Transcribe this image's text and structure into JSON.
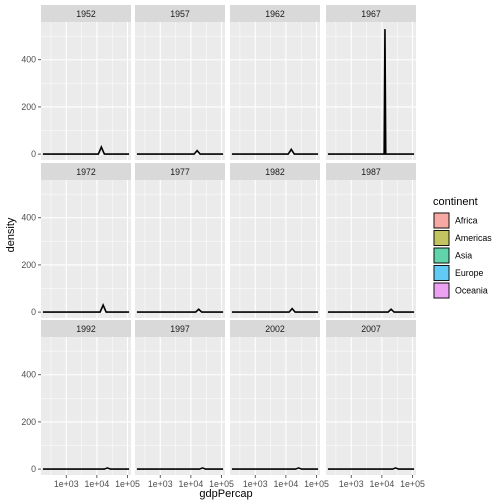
{
  "chart_data": {
    "type": "area",
    "xlabel": "gdpPercap",
    "ylabel": "density",
    "x_scale": "log10",
    "xlim": [
      150,
      130000
    ],
    "ylim": [
      -25,
      560
    ],
    "x_ticks": [
      {
        "value": 1000,
        "label": "1e+03"
      },
      {
        "value": 10000,
        "label": "1e+04"
      },
      {
        "value": 100000,
        "label": "1e+05"
      }
    ],
    "y_ticks": [
      {
        "value": 0,
        "label": "0"
      },
      {
        "value": 200,
        "label": "200"
      },
      {
        "value": 400,
        "label": "400"
      }
    ],
    "grid": true,
    "facets": [
      {
        "label": "1952",
        "peak_x": 14000,
        "peak_y": 30
      },
      {
        "label": "1957",
        "peak_x": 16000,
        "peak_y": 15
      },
      {
        "label": "1962",
        "peak_x": 15000,
        "peak_y": 20
      },
      {
        "label": "1967",
        "peak_x": 12600,
        "peak_y": 530
      },
      {
        "label": "1972",
        "peak_x": 16000,
        "peak_y": 30
      },
      {
        "label": "1977",
        "peak_x": 18000,
        "peak_y": 12
      },
      {
        "label": "1982",
        "peak_x": 16000,
        "peak_y": 15
      },
      {
        "label": "1987",
        "peak_x": 20000,
        "peak_y": 12
      },
      {
        "label": "1992",
        "peak_x": 22000,
        "peak_y": 5
      },
      {
        "label": "1997",
        "peak_x": 24000,
        "peak_y": 5
      },
      {
        "label": "2002",
        "peak_x": 26000,
        "peak_y": 5
      },
      {
        "label": "2007",
        "peak_x": 28000,
        "peak_y": 5
      }
    ],
    "legend": {
      "title": "continent",
      "position": "right",
      "entries": [
        {
          "label": "Africa",
          "color": "#F8766D"
        },
        {
          "label": "Americas",
          "color": "#A3A500"
        },
        {
          "label": "Asia",
          "color": "#00BF7D"
        },
        {
          "label": "Europe",
          "color": "#00B0F6"
        },
        {
          "label": "Oceania",
          "color": "#E76BF3"
        }
      ]
    }
  }
}
